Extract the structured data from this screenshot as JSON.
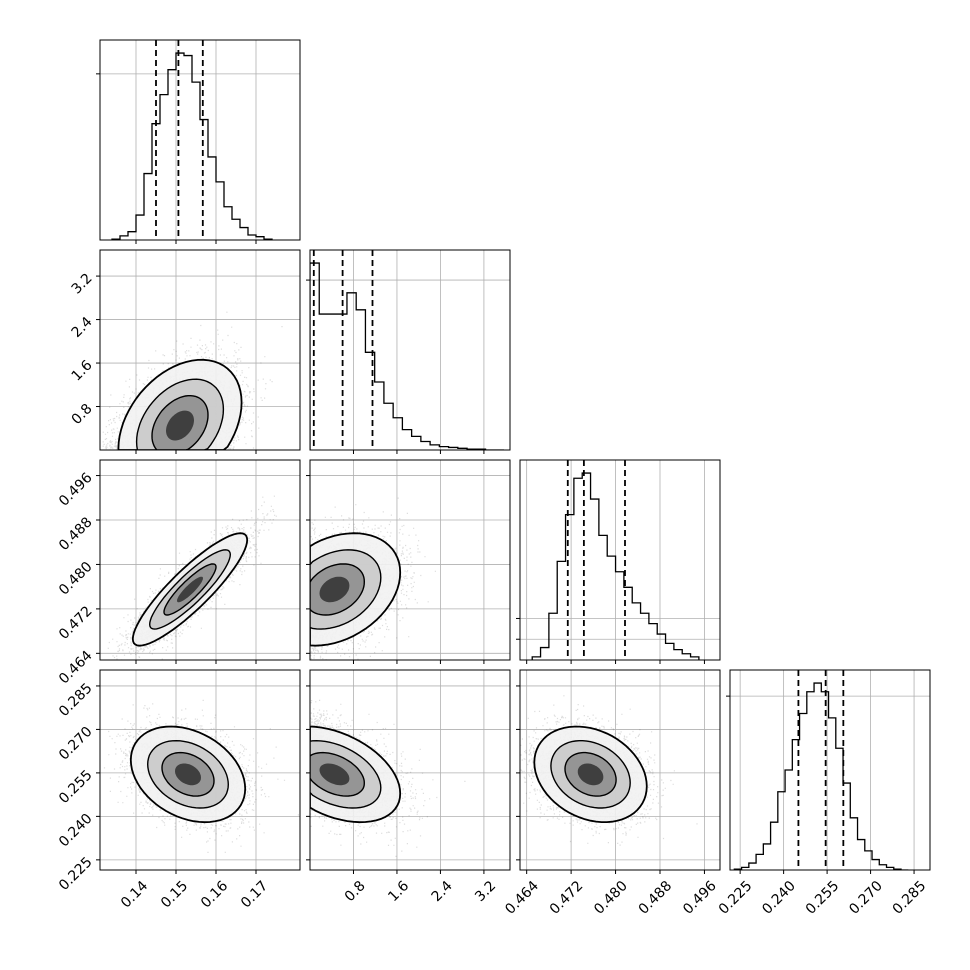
{
  "chart_data": {
    "type": "corner",
    "grid": true,
    "parameters": [
      {
        "xlim": [
          0.131,
          0.181
        ],
        "ticks": [
          0.14,
          0.15,
          0.16,
          0.17
        ],
        "tick_labels": [
          "0.14",
          "0.15",
          "0.16",
          "0.17"
        ]
      },
      {
        "xlim": [
          0.0,
          3.68
        ],
        "ticks": [
          0.8,
          1.6,
          2.4,
          3.2
        ],
        "tick_labels": [
          "0.8",
          "1.6",
          "2.4",
          "3.2"
        ]
      },
      {
        "xlim": [
          0.4628,
          0.4988
        ],
        "ticks": [
          0.464,
          0.472,
          0.48,
          0.488,
          0.496
        ],
        "tick_labels": [
          "0.464",
          "0.472",
          "0.480",
          "0.488",
          "0.496"
        ]
      },
      {
        "xlim": [
          0.2215,
          0.2905
        ],
        "ticks": [
          0.225,
          0.24,
          0.255,
          0.27,
          0.285
        ],
        "tick_labels": [
          "0.225",
          "0.240",
          "0.255",
          "0.270",
          "0.285"
        ]
      }
    ],
    "histograms": [
      {
        "quantiles": [
          0.145,
          0.1506,
          0.1567
        ],
        "bins": [
          0.134,
          0.136,
          0.138,
          0.14,
          0.142,
          0.144,
          0.146,
          0.148,
          0.15,
          0.152,
          0.154,
          0.156,
          0.158,
          0.16,
          0.162,
          0.164,
          0.166,
          0.168,
          0.17,
          0.172,
          0.174
        ],
        "values": [
          1,
          5,
          10,
          30,
          80,
          140,
          175,
          205,
          225,
          222,
          190,
          145,
          100,
          70,
          40,
          25,
          15,
          6,
          4,
          1
        ]
      },
      {
        "quantiles": [
          0.07,
          0.6,
          1.15
        ],
        "bins": [
          0.0,
          0.17,
          0.34,
          0.51,
          0.68,
          0.85,
          1.02,
          1.19,
          1.36,
          1.53,
          1.7,
          1.87,
          2.04,
          2.21,
          2.38,
          2.55,
          2.72,
          2.89,
          3.06,
          3.23,
          3.4,
          3.57
        ],
        "values": [
          220,
          160,
          160,
          160,
          185,
          165,
          115,
          80,
          55,
          38,
          24,
          16,
          10,
          6,
          4,
          3,
          2,
          1,
          1,
          0,
          0
        ]
      },
      {
        "quantiles": [
          0.4714,
          0.4743,
          0.4817
        ],
        "bins": [
          0.465,
          0.4665,
          0.468,
          0.4695,
          0.471,
          0.4725,
          0.474,
          0.4755,
          0.477,
          0.4785,
          0.48,
          0.4815,
          0.483,
          0.4845,
          0.486,
          0.4875,
          0.489,
          0.4905,
          0.492,
          0.4935,
          0.495
        ],
        "values": [
          3,
          12,
          45,
          95,
          140,
          175,
          180,
          155,
          120,
          100,
          85,
          70,
          55,
          45,
          35,
          25,
          16,
          10,
          6,
          3
        ]
      },
      {
        "quantiles": [
          0.2451,
          0.2545,
          0.2606
        ],
        "bins": [
          0.223,
          0.2255,
          0.228,
          0.2305,
          0.233,
          0.2355,
          0.238,
          0.2405,
          0.243,
          0.2455,
          0.248,
          0.2505,
          0.253,
          0.2555,
          0.258,
          0.2605,
          0.263,
          0.2655,
          0.268,
          0.2705,
          0.273,
          0.2755,
          0.278,
          0.2805,
          0.283
        ],
        "values": [
          1,
          3,
          8,
          18,
          30,
          55,
          90,
          115,
          150,
          180,
          205,
          215,
          205,
          175,
          140,
          100,
          60,
          35,
          22,
          12,
          6,
          3,
          1,
          0
        ]
      }
    ],
    "pairs": [
      {
        "x": 0,
        "y": 1,
        "mean": [
          0.151,
          0.45
        ],
        "sd": [
          0.007,
          0.55
        ],
        "rho": 0.35,
        "y_clip_min": 0.0
      },
      {
        "x": 0,
        "y": 2,
        "mean": [
          0.1535,
          0.4755
        ],
        "sd": [
          0.0065,
          0.0046
        ],
        "rho": 0.88
      },
      {
        "x": 1,
        "y": 2,
        "mean": [
          0.45,
          0.4755
        ],
        "sd": [
          0.55,
          0.0046
        ],
        "rho": 0.3,
        "x_clip_min": 0.0
      },
      {
        "x": 0,
        "y": 3,
        "mean": [
          0.153,
          0.2545
        ],
        "sd": [
          0.0065,
          0.0075
        ],
        "rho": -0.3
      },
      {
        "x": 1,
        "y": 3,
        "mean": [
          0.45,
          0.2545
        ],
        "sd": [
          0.55,
          0.0075
        ],
        "rho": -0.4,
        "x_clip_min": 0.0
      },
      {
        "x": 2,
        "y": 3,
        "mean": [
          0.4755,
          0.2545
        ],
        "sd": [
          0.0046,
          0.0075
        ],
        "rho": -0.25
      }
    ]
  },
  "colors": {
    "ink": "#000000",
    "grid": "#b0b0b0",
    "scatter": "#404040"
  }
}
